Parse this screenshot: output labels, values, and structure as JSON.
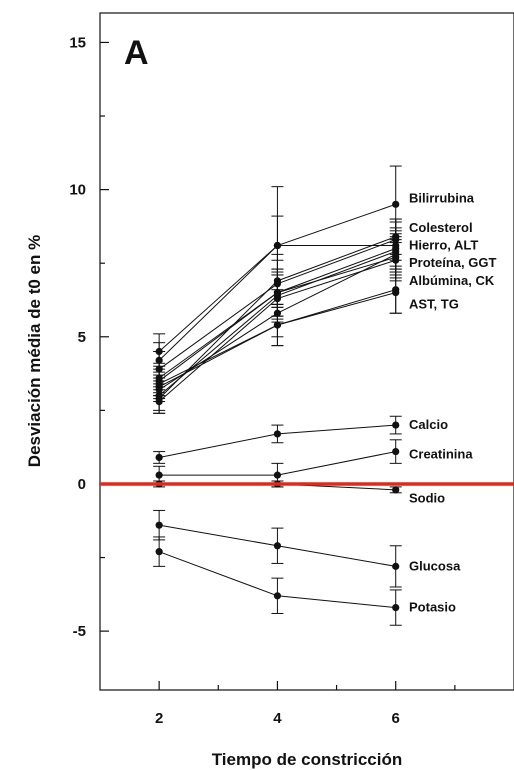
{
  "chart_data": {
    "type": "line",
    "panel_label": "A",
    "xlabel": "Tiempo de constricción",
    "ylabel": "Desviación média de t0 en %",
    "x_ticks": [
      "2",
      "4",
      "6"
    ],
    "y_ticks": [
      "-5",
      "0",
      "5",
      "10",
      "15"
    ],
    "xlim": [
      1,
      8
    ],
    "ylim": [
      -7,
      16
    ],
    "x": [
      2,
      4,
      6
    ],
    "reference_line": {
      "y": 0,
      "color": "#e0281e"
    },
    "series": [
      {
        "values": [
          4.5,
          8.1,
          9.5
        ],
        "err": [
          0.6,
          2.0,
          1.3
        ]
      },
      {
        "values": [
          4.2,
          8.1,
          8.1
        ],
        "err": [
          0.6,
          1.0,
          0.8
        ]
      },
      {
        "values": [
          2.9,
          6.9,
          8.4
        ],
        "err": [
          0.5,
          0.9,
          0.6
        ]
      },
      {
        "values": [
          3.9,
          6.8,
          8.3
        ],
        "err": [
          0.6,
          0.8,
          0.7
        ]
      },
      {
        "values": [
          3.5,
          6.5,
          8.0
        ],
        "err": [
          0.5,
          0.8,
          0.7
        ]
      },
      {
        "values": [
          3.0,
          6.4,
          7.9
        ],
        "err": [
          0.5,
          0.8,
          0.7
        ]
      },
      {
        "values": [
          3.6,
          6.5,
          7.7
        ],
        "err": [
          0.5,
          0.8,
          0.7
        ]
      },
      {
        "values": [
          2.8,
          6.3,
          7.6
        ],
        "err": [
          0.4,
          0.8,
          0.7
        ]
      },
      {
        "values": [
          3.2,
          5.8,
          7.8
        ],
        "err": [
          0.4,
          0.8,
          0.7
        ]
      },
      {
        "values": [
          3.3,
          5.4,
          6.6
        ],
        "err": [
          0.4,
          0.7,
          0.8
        ]
      },
      {
        "values": [
          3.4,
          5.4,
          6.5
        ],
        "err": [
          0.4,
          0.7,
          0.7
        ]
      },
      {
        "values": [
          0.9,
          1.7,
          2.0
        ],
        "err": [
          0.2,
          0.3,
          0.3
        ]
      },
      {
        "values": [
          0.3,
          0.3,
          1.1
        ],
        "err": [
          0.3,
          0.4,
          0.4
        ]
      },
      {
        "values": [
          0.0,
          0.0,
          -0.2
        ],
        "err": [
          0.1,
          0.1,
          0.1
        ]
      },
      {
        "values": [
          -1.4,
          -2.1,
          -2.8
        ],
        "err": [
          0.5,
          0.6,
          0.7
        ]
      },
      {
        "values": [
          -2.3,
          -3.8,
          -4.2
        ],
        "err": [
          0.5,
          0.6,
          0.6
        ]
      }
    ],
    "annotations": [
      {
        "text": "Bilirrubina",
        "y": 9.7
      },
      {
        "text": "Colesterol",
        "y": 8.7
      },
      {
        "text": "Hierro, ALT",
        "y": 8.1
      },
      {
        "text": "Proteína, GGT",
        "y": 7.5
      },
      {
        "text": "Albúmina, CK",
        "y": 6.9
      },
      {
        "text": "AST, TG",
        "y": 6.1
      },
      {
        "text": "Calcio",
        "y": 2.0
      },
      {
        "text": "Creatinina",
        "y": 1.0
      },
      {
        "text": "Sodio",
        "y": -0.5
      },
      {
        "text": "Glucosa",
        "y": -2.8
      },
      {
        "text": "Potasio",
        "y": -4.2
      }
    ]
  }
}
